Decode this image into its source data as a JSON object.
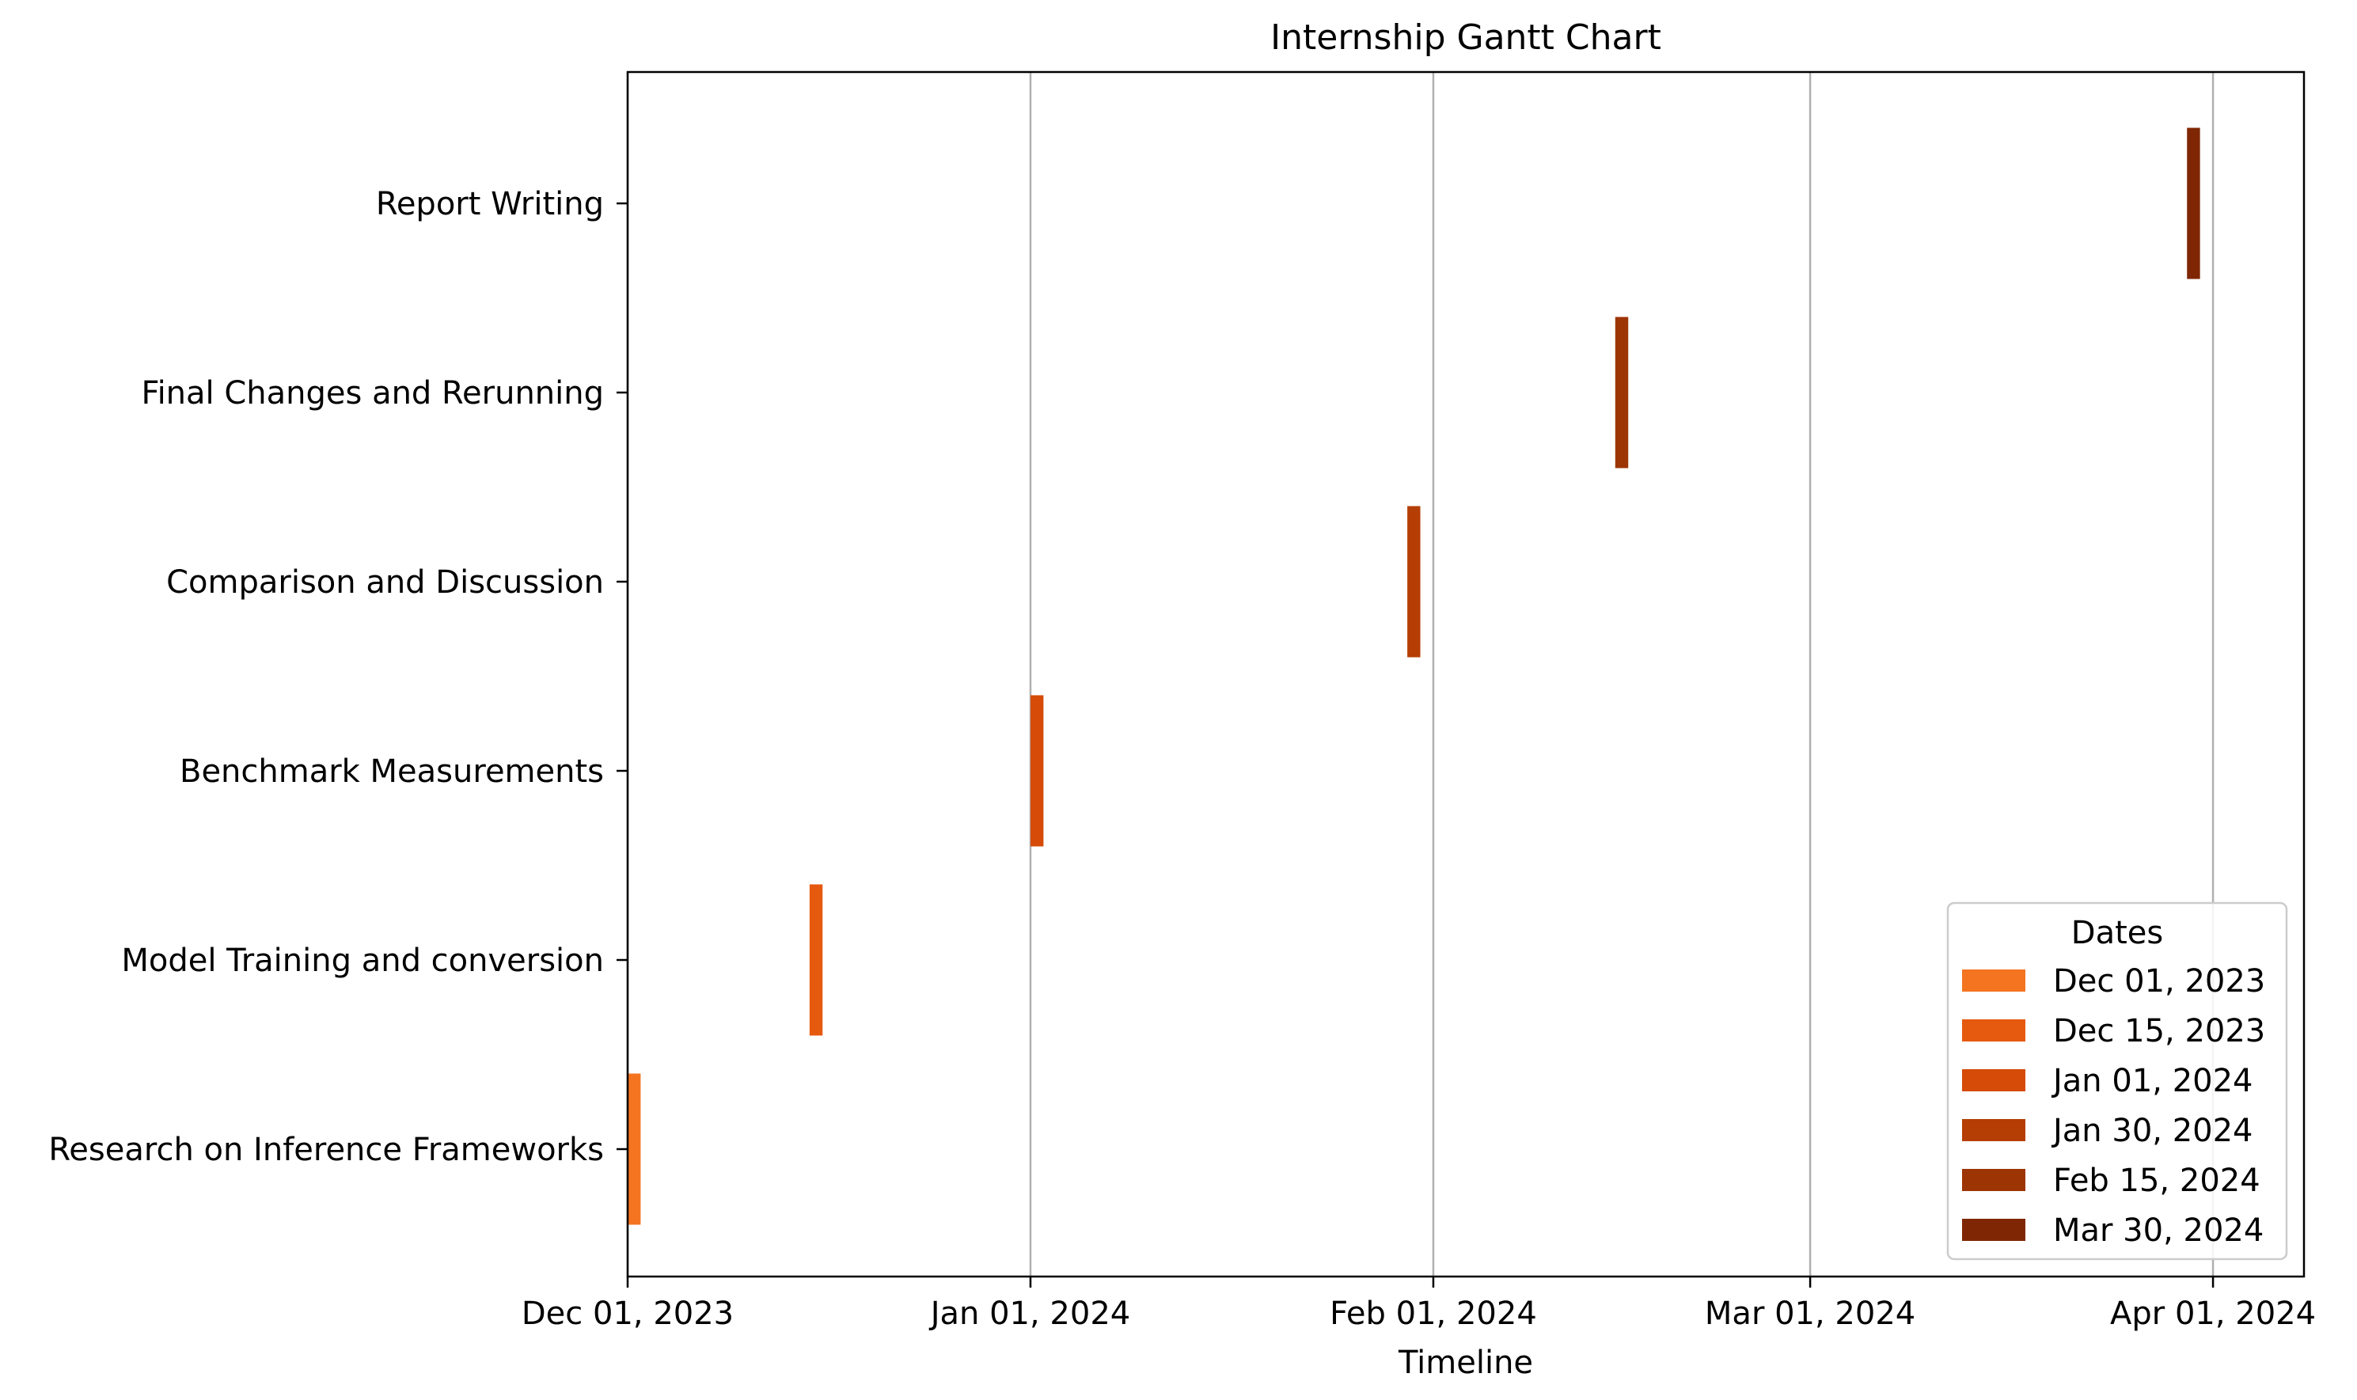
{
  "chart_data": {
    "type": "gantt",
    "title": "Internship Gantt Chart",
    "xlabel": "Timeline",
    "ylabel": "",
    "grid": {
      "x": true,
      "y": false
    },
    "xlim": [
      "2023-12-01",
      "2024-04-08"
    ],
    "x_ticks": [
      {
        "date": "2023-12-01",
        "label": "Dec 01, 2023"
      },
      {
        "date": "2024-01-01",
        "label": "Jan 01, 2024"
      },
      {
        "date": "2024-02-01",
        "label": "Feb 01, 2024"
      },
      {
        "date": "2024-03-01",
        "label": "Mar 01, 2024"
      },
      {
        "date": "2024-04-01",
        "label": "Apr 01, 2024"
      }
    ],
    "categories": [
      "Research on Inference Frameworks",
      "Model Training and conversion",
      "Benchmark Measurements",
      "Comparison and Discussion",
      "Final Changes and Rerunning",
      "Report Writing"
    ],
    "tasks": [
      {
        "task": "Research on Inference Frameworks",
        "start": "2023-12-01",
        "end": "2023-12-02",
        "color": "#f47420"
      },
      {
        "task": "Model Training and conversion",
        "start": "2023-12-15",
        "end": "2023-12-16",
        "color": "#e55a0f"
      },
      {
        "task": "Benchmark Measurements",
        "start": "2024-01-01",
        "end": "2024-01-02",
        "color": "#d54b07"
      },
      {
        "task": "Comparison and Discussion",
        "start": "2024-01-30",
        "end": "2024-01-31",
        "color": "#b53e04"
      },
      {
        "task": "Final Changes and Rerunning",
        "start": "2024-02-15",
        "end": "2024-02-16",
        "color": "#9d3403"
      },
      {
        "task": "Report Writing",
        "start": "2024-03-30",
        "end": "2024-03-31",
        "color": "#7f2704"
      }
    ],
    "legend": {
      "title": "Dates",
      "placement": "lower-right",
      "entries": [
        {
          "label": "Dec 01, 2023",
          "color": "#f47420"
        },
        {
          "label": "Dec 15, 2023",
          "color": "#e55a0f"
        },
        {
          "label": "Jan 01, 2024",
          "color": "#d54b07"
        },
        {
          "label": "Jan 30, 2024",
          "color": "#b53e04"
        },
        {
          "label": "Feb 15, 2024",
          "color": "#9d3403"
        },
        {
          "label": "Mar 30, 2024",
          "color": "#7f2704"
        }
      ]
    }
  }
}
